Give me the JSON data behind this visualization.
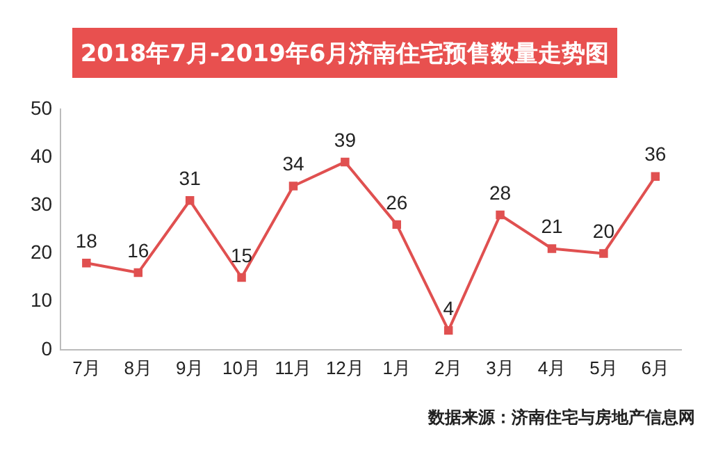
{
  "chart_data": {
    "type": "line",
    "title": "2018年7月-2019年6月济南住宅预售数量走势图",
    "categories": [
      "7月",
      "8月",
      "9月",
      "10月",
      "11月",
      "12月",
      "1月",
      "2月",
      "3月",
      "4月",
      "5月",
      "6月"
    ],
    "series": [
      {
        "color": "#e05050",
        "values": [
          18,
          16,
          31,
          15,
          34,
          39,
          26,
          4,
          28,
          21,
          20,
          36
        ]
      }
    ],
    "ylim": [
      0,
      50
    ],
    "yticks": [
      0,
      10,
      20,
      30,
      40,
      50
    ],
    "grid": false,
    "legend": false,
    "marker": "square",
    "line_style": "solid",
    "data_labels": true,
    "annotations": [
      "数据来源：济南住宅与房地产信息网"
    ]
  }
}
